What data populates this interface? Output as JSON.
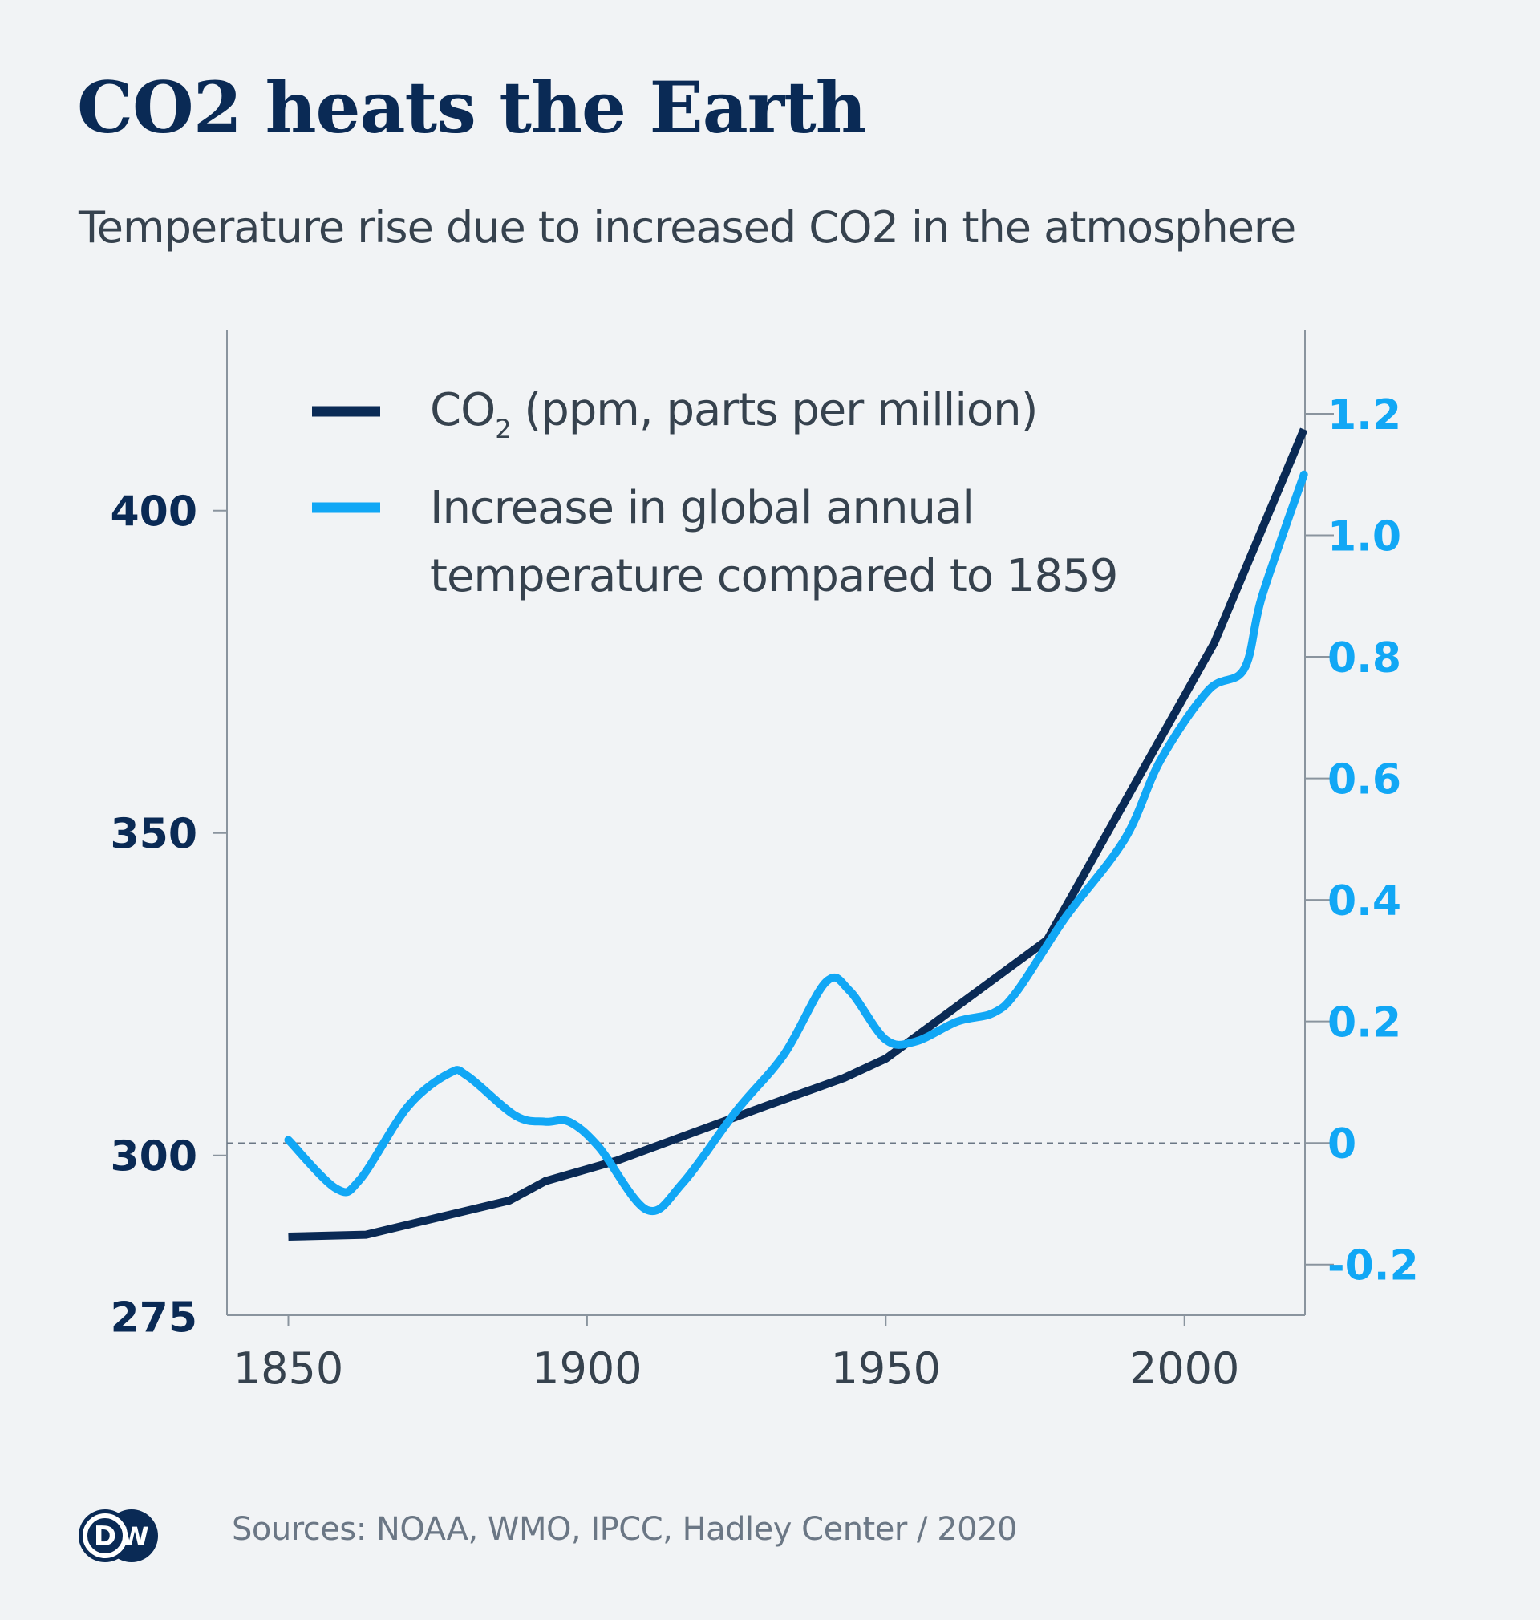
{
  "chart_data": {
    "type": "line",
    "title": "CO2 heats the Earth",
    "subtitle": "Temperature rise due to increased CO2 in the atmosphere",
    "x_ticks": [
      "1850",
      "1900",
      "1950",
      "2000"
    ],
    "xlim": [
      1840,
      2020
    ],
    "y_left": {
      "ticks": [
        "400",
        "350",
        "300",
        "275"
      ],
      "tick_values": [
        400,
        350,
        300,
        275
      ],
      "ylim": [
        275,
        428
      ],
      "color": "#0a2a55"
    },
    "y_right": {
      "ticks": [
        "1.2",
        "1.0",
        "0.8",
        "0.6",
        "0.4",
        "0.2",
        "0",
        "-0.2"
      ],
      "tick_values": [
        1.2,
        1.0,
        0.8,
        0.6,
        0.4,
        0.2,
        0,
        -0.2
      ],
      "color": "#11a7f5"
    },
    "reference_line": {
      "axis": "right",
      "value": 0,
      "style": "dashed"
    },
    "legend": {
      "placement": "top-left"
    },
    "series": [
      {
        "name": "CO2 (ppm, parts per million)",
        "name_main": "CO",
        "name_sub": "2",
        "name_rest": " (ppm, parts per million)",
        "axis": "left",
        "color": "#0a2a55",
        "x": [
          1850,
          1863,
          1887,
          1893,
          1905,
          1930,
          1943,
          1950,
          1977,
          2005,
          2020
        ],
        "y": [
          287.4,
          287.7,
          293,
          296,
          299.2,
          307.7,
          312,
          315,
          333.4,
          379.5,
          412.6
        ]
      },
      {
        "name": "Increase in global annual temperature compared to 1859",
        "name_line1": "Increase in global annual",
        "name_line2": "temperature compared to 1859",
        "axis": "right",
        "color": "#11a7f5",
        "x": [
          1850,
          1858,
          1862,
          1870,
          1877,
          1880,
          1888,
          1893,
          1897,
          1902,
          1910,
          1916,
          1925,
          1933,
          1940,
          1944,
          1950,
          1955,
          1962,
          1968,
          1972,
          1980,
          1990,
          1996,
          2004,
          2010,
          2013,
          2020
        ],
        "y": [
          0.005,
          -0.075,
          -0.06,
          0.06,
          0.115,
          0.11,
          0.045,
          0.035,
          0.035,
          -0.007,
          -0.11,
          -0.066,
          0.053,
          0.146,
          0.265,
          0.25,
          0.17,
          0.167,
          0.2,
          0.214,
          0.25,
          0.37,
          0.5,
          0.63,
          0.745,
          0.78,
          0.9,
          1.1
        ]
      }
    ]
  },
  "footer": {
    "sources": "Sources: NOAA, WMO, IPCC, Hadley Center / 2020",
    "logo_text": "DW"
  }
}
